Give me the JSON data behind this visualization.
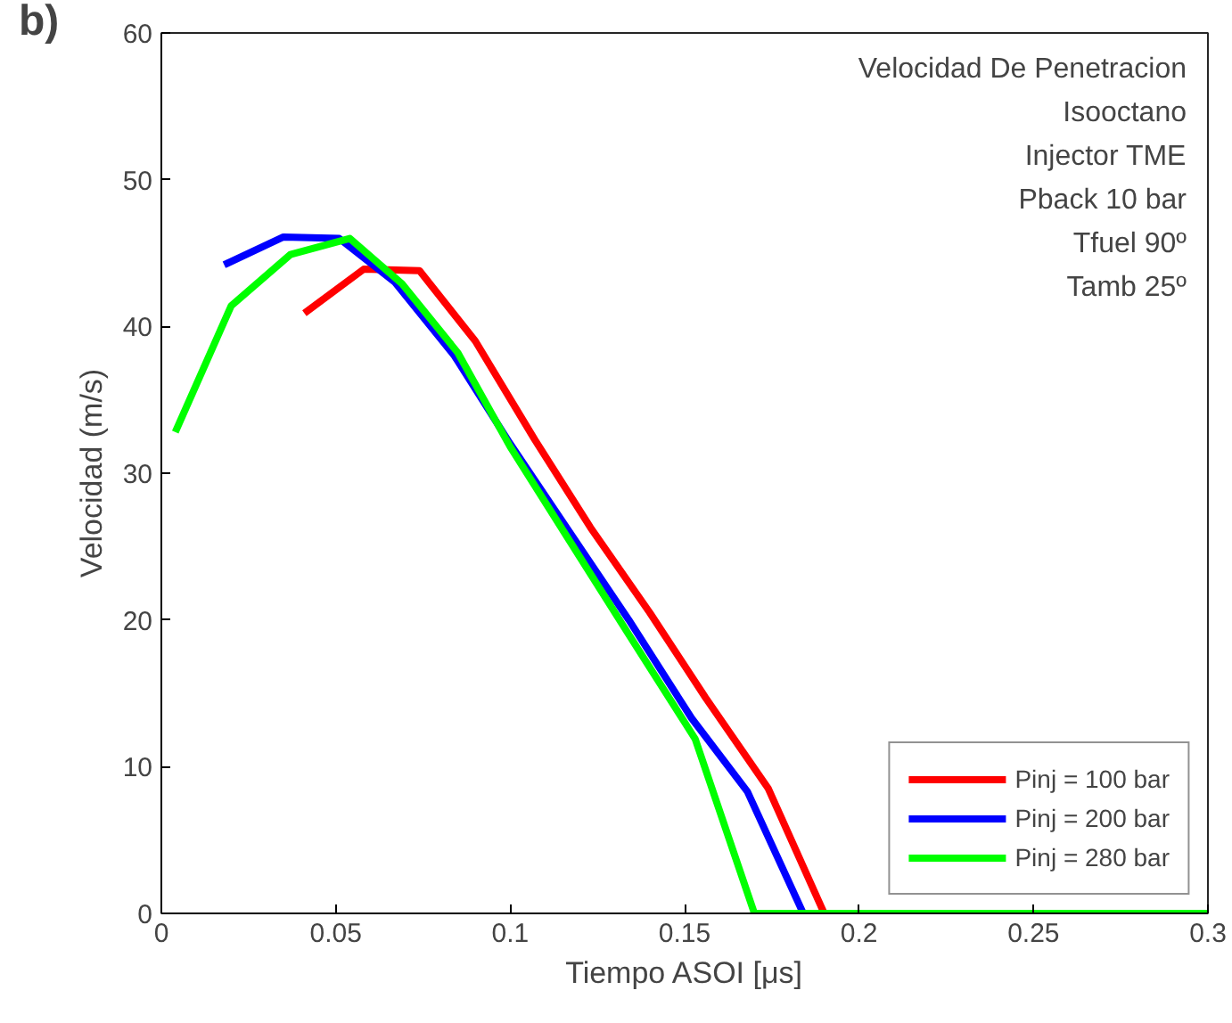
{
  "chart_data": {
    "type": "line",
    "title": "b)",
    "xlabel": "Tiempo ASOI [μs]",
    "ylabel": "Velocidad (m/s)",
    "xlim": [
      0,
      0.3
    ],
    "ylim": [
      0,
      60
    ],
    "xticks": [
      0,
      0.05,
      0.1,
      0.15,
      0.2,
      0.25,
      0.3
    ],
    "yticks": [
      0,
      10,
      20,
      30,
      40,
      50,
      60
    ],
    "grid": false,
    "legend": "bottom right",
    "line_style": "solid",
    "marker": "none",
    "annotations": [
      "Velocidad De Penetracion",
      "Isooctano",
      "Injector TME",
      "Pback 10 bar",
      "Tfuel 90º",
      "Tamb 25º"
    ],
    "series": [
      {
        "name": "Pinj = 100 bar",
        "color": "#ff0000",
        "x": [
          0.041,
          0.058,
          0.074,
          0.09,
          0.107,
          0.123,
          0.14,
          0.156,
          0.174,
          0.19,
          0.3
        ],
        "values": [
          40.9,
          43.9,
          43.8,
          39.0,
          32.3,
          26.3,
          20.5,
          14.7,
          8.5,
          0,
          0
        ]
      },
      {
        "name": "Pinj = 200 bar",
        "color": "#0000ff",
        "x": [
          0.018,
          0.035,
          0.051,
          0.067,
          0.084,
          0.1,
          0.117,
          0.134,
          0.152,
          0.168,
          0.184,
          0.3
        ],
        "values": [
          44.2,
          46.1,
          46.0,
          43.0,
          38.0,
          32.0,
          26.0,
          20.0,
          13.3,
          8.3,
          0,
          0
        ]
      },
      {
        "name": "Pinj = 280 bar",
        "color": "#00ff00",
        "x": [
          0.004,
          0.02,
          0.037,
          0.054,
          0.069,
          0.085,
          0.1,
          0.117,
          0.134,
          0.153,
          0.17,
          0.3
        ],
        "values": [
          32.8,
          41.4,
          44.9,
          46.0,
          42.9,
          38.2,
          31.8,
          25.4,
          19.0,
          11.9,
          0,
          0
        ]
      }
    ]
  }
}
